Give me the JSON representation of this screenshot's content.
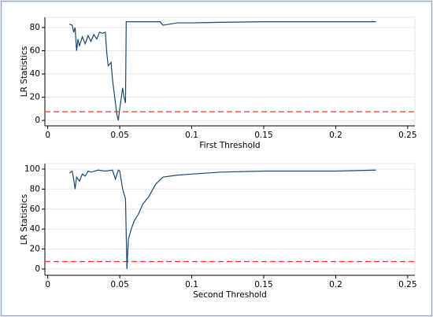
{
  "chart_data": [
    {
      "type": "line",
      "xlabel": "First Threshold",
      "ylabel": "LR Statistics",
      "x": [
        0.015,
        0.017,
        0.018,
        0.019,
        0.02,
        0.021,
        0.022,
        0.024,
        0.026,
        0.028,
        0.03,
        0.032,
        0.034,
        0.036,
        0.038,
        0.04,
        0.041,
        0.042,
        0.044,
        0.045,
        0.046,
        0.047,
        0.048,
        0.049,
        0.05,
        0.052,
        0.053,
        0.054,
        0.0545,
        0.06,
        0.07,
        0.078,
        0.08,
        0.085,
        0.09,
        0.1,
        0.12,
        0.15,
        0.2,
        0.228
      ],
      "series": [
        {
          "color": "#1a476f",
          "values": [
            83,
            82,
            76,
            80,
            60,
            70,
            64,
            72,
            66,
            73,
            68,
            74,
            70,
            76,
            75,
            76,
            58,
            47,
            50,
            35,
            25,
            15,
            5,
            0,
            10,
            28,
            20,
            15,
            85,
            85,
            85,
            85,
            82,
            83,
            84,
            84,
            84.5,
            85,
            85,
            85
          ]
        }
      ],
      "yline": 7.5,
      "yline_color": "#e8372c",
      "xlim": [
        -0.002,
        0.255
      ],
      "xticks": [
        0,
        0.05,
        0.1,
        0.15,
        0.2,
        0.25
      ],
      "ylim": [
        -4.7,
        88.8
      ],
      "yticks": [
        0,
        20,
        40,
        60,
        80
      ],
      "grid": true
    },
    {
      "type": "line",
      "xlabel": "Second Threshold",
      "ylabel": "LR Statistics",
      "x": [
        0.015,
        0.017,
        0.018,
        0.019,
        0.02,
        0.022,
        0.024,
        0.026,
        0.028,
        0.03,
        0.035,
        0.04,
        0.045,
        0.047,
        0.049,
        0.05,
        0.052,
        0.054,
        0.055,
        0.056,
        0.058,
        0.06,
        0.063,
        0.066,
        0.07,
        0.075,
        0.08,
        0.09,
        0.1,
        0.11,
        0.12,
        0.15,
        0.2,
        0.228
      ],
      "series": [
        {
          "color": "#1a476f",
          "values": [
            96,
            98,
            90,
            80,
            92,
            88,
            95,
            93,
            98,
            97,
            99,
            98,
            99,
            90,
            99,
            98,
            80,
            70,
            0,
            30,
            40,
            48,
            55,
            65,
            72,
            85,
            92,
            94,
            95,
            96,
            97,
            98,
            98,
            99
          ]
        }
      ],
      "yline": 7.5,
      "yline_color": "#e8372c",
      "xlim": [
        -0.002,
        0.255
      ],
      "xticks": [
        0,
        0.05,
        0.1,
        0.15,
        0.2,
        0.25
      ],
      "ylim": [
        -6.3,
        105.5
      ],
      "yticks": [
        0,
        20,
        40,
        60,
        80,
        100
      ],
      "grid": true
    }
  ]
}
